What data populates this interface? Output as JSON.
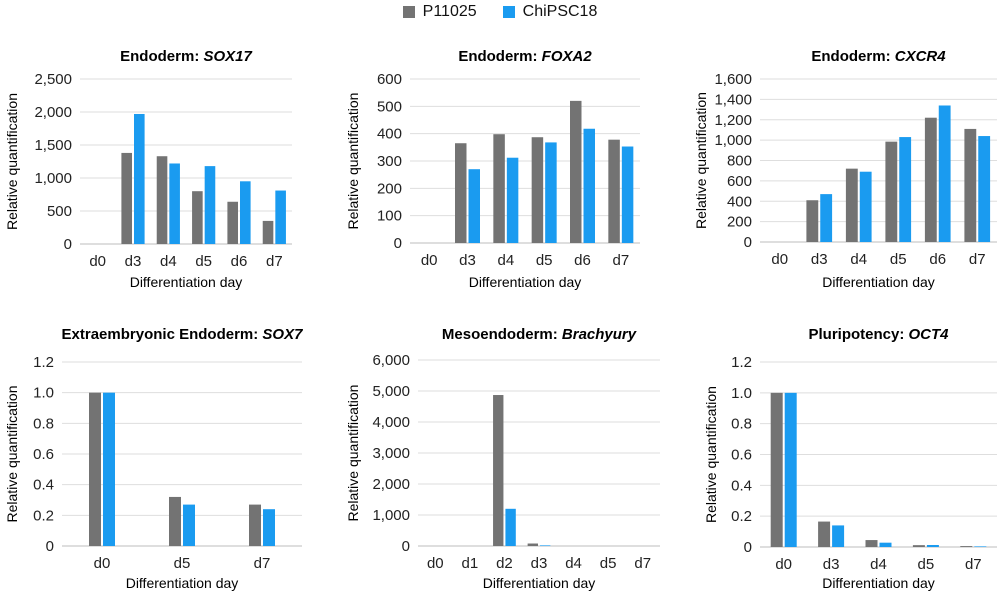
{
  "legend": {
    "p11025": {
      "label": "P11025",
      "color": "#737373"
    },
    "chipsc18": {
      "label": "ChiPSC18",
      "color": "#1a9bf0"
    }
  },
  "chart_data": [
    {
      "type": "bar",
      "title_prefix": "Endoderm: ",
      "title_gene": "SOX17",
      "xlabel": "Differentiation day",
      "ylabel": "Relative quantification",
      "categories": [
        "d0",
        "d3",
        "d4",
        "d5",
        "d6",
        "d7"
      ],
      "ylim": [
        0,
        2500
      ],
      "yticks": [
        0,
        500,
        1000,
        1500,
        2000,
        2500
      ],
      "ytick_labels": [
        "0",
        "500",
        "1,000",
        "1,500",
        "2,000",
        "2,500"
      ],
      "series": [
        {
          "name": "P11025",
          "values": [
            0,
            1380,
            1330,
            800,
            640,
            350
          ]
        },
        {
          "name": "ChiPSC18",
          "values": [
            0,
            1970,
            1220,
            1180,
            950,
            810
          ]
        }
      ]
    },
    {
      "type": "bar",
      "title_prefix": "Endoderm: ",
      "title_gene": "FOXA2",
      "xlabel": "Differentiation day",
      "ylabel": "Relative quantification",
      "categories": [
        "d0",
        "d3",
        "d4",
        "d5",
        "d6",
        "d7"
      ],
      "ylim": [
        0,
        600
      ],
      "yticks": [
        0,
        100,
        200,
        300,
        400,
        500,
        600
      ],
      "ytick_labels": [
        "0",
        "100",
        "200",
        "300",
        "400",
        "500",
        "600"
      ],
      "series": [
        {
          "name": "P11025",
          "values": [
            0,
            365,
            398,
            387,
            520,
            378
          ]
        },
        {
          "name": "ChiPSC18",
          "values": [
            0,
            270,
            312,
            368,
            418,
            353
          ]
        }
      ]
    },
    {
      "type": "bar",
      "title_prefix": "Endoderm: ",
      "title_gene": "CXCR4",
      "xlabel": "Differentiation day",
      "ylabel": "Relative quantification",
      "categories": [
        "d0",
        "d3",
        "d4",
        "d5",
        "d6",
        "d7"
      ],
      "ylim": [
        0,
        1600
      ],
      "yticks": [
        0,
        200,
        400,
        600,
        800,
        1000,
        1200,
        1400,
        1600
      ],
      "ytick_labels": [
        "0",
        "200",
        "400",
        "600",
        "800",
        "1,000",
        "1,200",
        "1,400",
        "1,600"
      ],
      "series": [
        {
          "name": "P11025",
          "values": [
            0,
            410,
            720,
            985,
            1220,
            1110
          ]
        },
        {
          "name": "ChiPSC18",
          "values": [
            0,
            470,
            690,
            1030,
            1340,
            1040
          ]
        }
      ]
    },
    {
      "type": "bar",
      "title_prefix": "Extraembryonic Endoderm: ",
      "title_gene": "SOX7",
      "xlabel": "Differentiation day",
      "ylabel": "Relative quantification",
      "categories": [
        "d0",
        "d5",
        "d7"
      ],
      "ylim": [
        0,
        1.2
      ],
      "yticks": [
        0,
        0.2,
        0.4,
        0.6,
        0.8,
        1.0,
        1.2
      ],
      "ytick_labels": [
        "0",
        "0.2",
        "0.4",
        "0.6",
        "0.8",
        "1.0",
        "1.2"
      ],
      "series": [
        {
          "name": "P11025",
          "values": [
            1.0,
            0.32,
            0.27
          ]
        },
        {
          "name": "ChiPSC18",
          "values": [
            1.0,
            0.27,
            0.24
          ]
        }
      ]
    },
    {
      "type": "bar",
      "title_prefix": "Mesoendoderm: ",
      "title_gene": "Brachyury",
      "xlabel": "Differentiation day",
      "ylabel": "Relative quantification",
      "categories": [
        "d0",
        "d1",
        "d2",
        "d3",
        "d4",
        "d5",
        "d7"
      ],
      "ylim": [
        0,
        6000
      ],
      "yticks": [
        0,
        1000,
        2000,
        3000,
        4000,
        5000,
        6000
      ],
      "ytick_labels": [
        "0",
        "1,000",
        "2,000",
        "3,000",
        "4,000",
        "5,000",
        "6,000"
      ],
      "series": [
        {
          "name": "P11025",
          "values": [
            0,
            0,
            4870,
            80,
            0,
            0,
            0
          ]
        },
        {
          "name": "ChiPSC18",
          "values": [
            0,
            0,
            1200,
            20,
            0,
            0,
            0
          ]
        }
      ]
    },
    {
      "type": "bar",
      "title_prefix": "Pluripotency: ",
      "title_gene": "OCT4",
      "xlabel": "Differentiation day",
      "ylabel": "Relative quantification",
      "categories": [
        "d0",
        "d3",
        "d4",
        "d5",
        "d7"
      ],
      "ylim": [
        0,
        1.2
      ],
      "yticks": [
        0,
        0.2,
        0.4,
        0.6,
        0.8,
        1.0,
        1.2
      ],
      "ytick_labels": [
        "0",
        "0.2",
        "0.4",
        "0.6",
        "0.8",
        "1.0",
        "1.2"
      ],
      "series": [
        {
          "name": "P11025",
          "values": [
            1.0,
            0.165,
            0.045,
            0.012,
            0.006
          ]
        },
        {
          "name": "ChiPSC18",
          "values": [
            1.0,
            0.14,
            0.028,
            0.013,
            0.004
          ]
        }
      ]
    }
  ]
}
